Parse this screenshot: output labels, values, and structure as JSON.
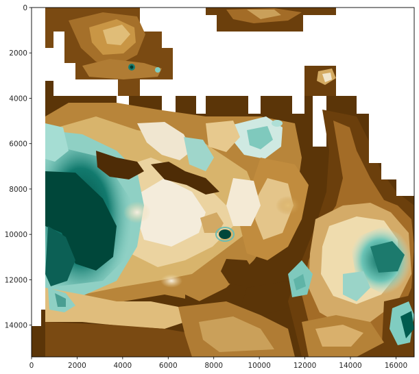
{
  "chart_data": {
    "type": "heatmap",
    "title": "",
    "xlabel": "",
    "ylabel": "",
    "colormap": "BrBG",
    "colorbar": false,
    "x_range": [
      0,
      16800
    ],
    "y_range": [
      15400,
      0
    ],
    "x_ticks": [
      0,
      2000,
      4000,
      6000,
      8000,
      10000,
      12000,
      14000,
      16000
    ],
    "y_ticks": [
      0,
      2000,
      4000,
      6000,
      8000,
      10000,
      12000,
      14000
    ],
    "x_tick_labels": [
      "0",
      "2000",
      "4000",
      "6000",
      "8000",
      "10000",
      "12000",
      "14000",
      "16000"
    ],
    "y_tick_labels": [
      "0",
      "2000",
      "4000",
      "6000",
      "8000",
      "10000",
      "12000",
      "14000"
    ],
    "nodata_color": "#ffffff",
    "colors": {
      "low": "#543005",
      "mid_low": "#bf812d",
      "mid": "#f5f5f5",
      "mid_high": "#80cdc1",
      "high": "#003c30"
    }
  }
}
